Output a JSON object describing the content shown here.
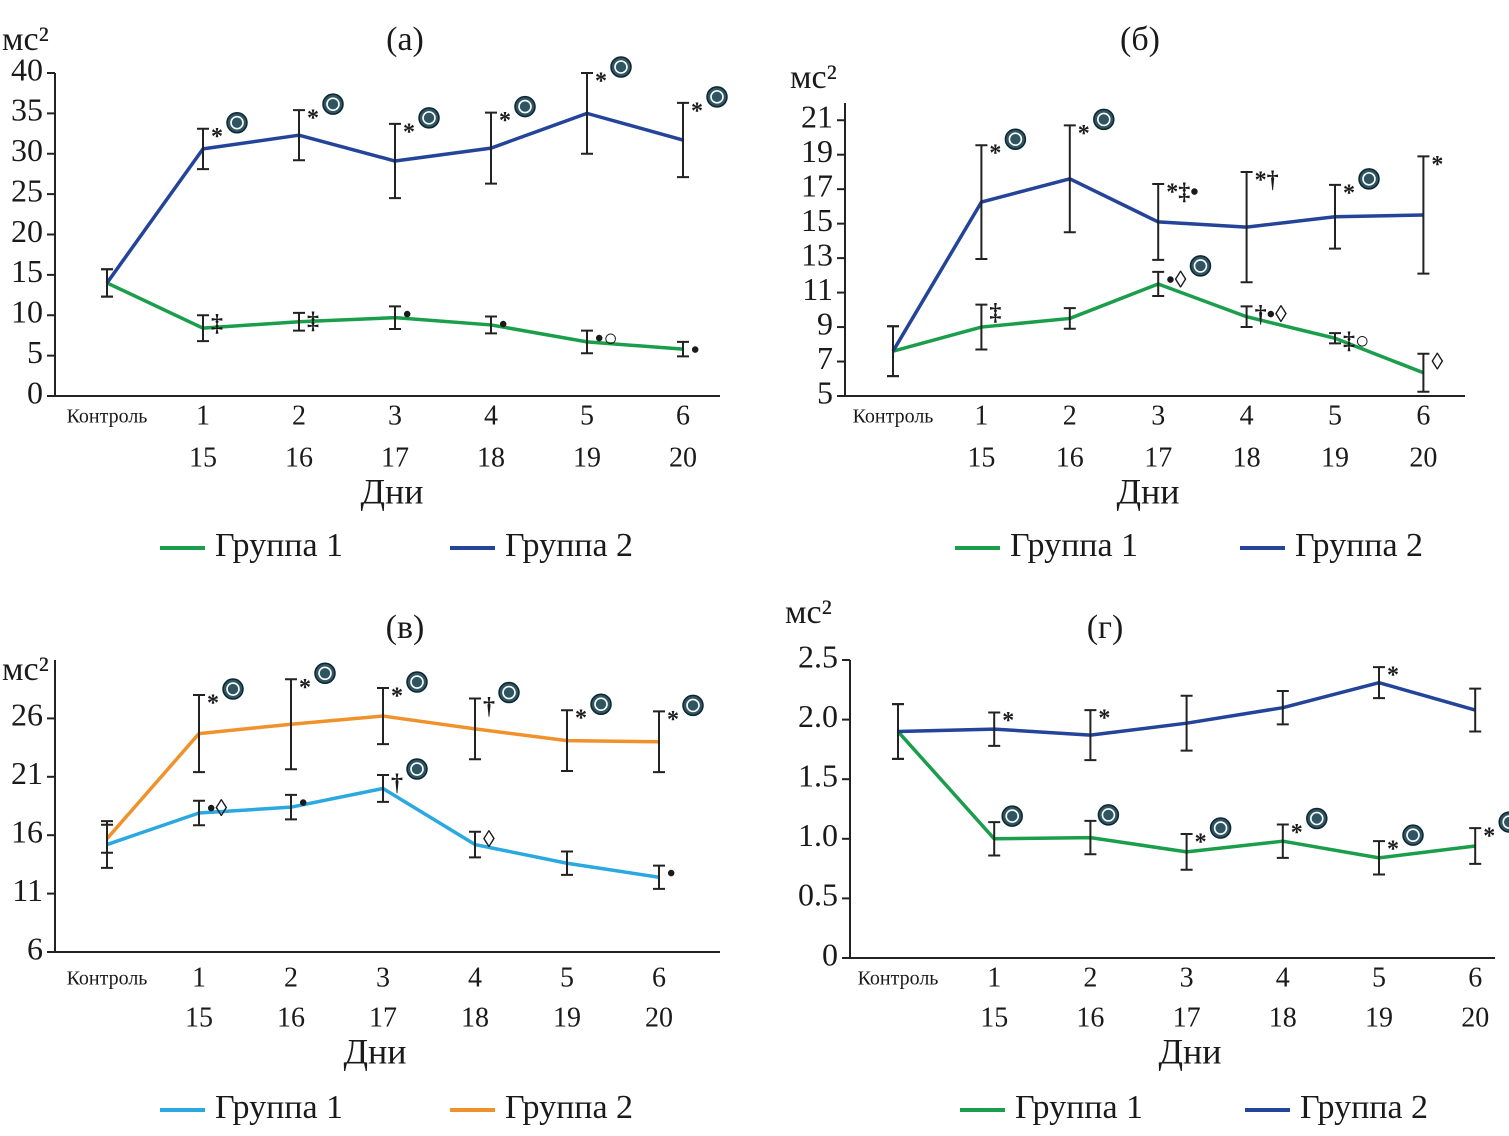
{
  "chart_data": [
    {
      "type": "line",
      "title": "(а)",
      "ylabel": "мс²",
      "xlabel": "Дни",
      "categories": [
        "Контроль",
        "1",
        "2",
        "3",
        "4",
        "5",
        "6"
      ],
      "categories_days": [
        null,
        "15",
        "16",
        "17",
        "18",
        "19",
        "20"
      ],
      "ylim": [
        0,
        40
      ],
      "yticks": [
        0,
        5,
        10,
        15,
        20,
        25,
        30,
        35,
        40
      ],
      "series": [
        {
          "name": "Группа 1",
          "color": "#1b9e4b",
          "values": [
            14,
            8.4,
            9.2,
            9.7,
            8.8,
            6.7,
            5.8
          ],
          "errors": [
            1.7,
            1.6,
            1.1,
            1.4,
            1.05,
            1.4,
            0.9
          ],
          "annotations": [
            null,
            "‡",
            "‡",
            "•",
            "•",
            "•○",
            "•"
          ],
          "sig_icon": [
            false,
            false,
            false,
            false,
            false,
            false,
            false
          ]
        },
        {
          "name": "Группа 2",
          "color": "#24449a",
          "values": [
            14,
            30.6,
            32.3,
            29.1,
            30.7,
            35,
            31.7
          ],
          "errors": [
            1.7,
            2.5,
            3.1,
            4.6,
            4.4,
            5,
            4.6
          ],
          "annotations": [
            null,
            "*",
            "*",
            "*",
            "*",
            "*",
            "*"
          ],
          "sig_icon": [
            false,
            true,
            true,
            true,
            true,
            true,
            true
          ]
        }
      ]
    },
    {
      "type": "line",
      "title": "(б)",
      "ylabel": "мс²",
      "xlabel": "Дни",
      "categories": [
        "Контроль",
        "1",
        "2",
        "3",
        "4",
        "5",
        "6"
      ],
      "categories_days": [
        null,
        "15",
        "16",
        "17",
        "18",
        "19",
        "20"
      ],
      "ylim": [
        5,
        22
      ],
      "yticks": [
        5,
        7,
        9,
        11,
        13,
        15,
        17,
        19,
        21
      ],
      "series": [
        {
          "name": "Группа 1",
          "color": "#1b9e4b",
          "values": [
            7.6,
            9,
            9.5,
            11.5,
            9.6,
            8.35,
            6.35
          ],
          "errors": [
            1.45,
            1.3,
            0.6,
            0.7,
            0.6,
            0.3,
            1.1
          ],
          "annotations": [
            null,
            "‡",
            null,
            "•◊",
            "†•◊",
            "‡○",
            "◊"
          ],
          "sig_icon": [
            false,
            false,
            false,
            true,
            false,
            false,
            false
          ]
        },
        {
          "name": "Группа 2",
          "color": "#24449a",
          "values": [
            7.6,
            16.25,
            17.6,
            15.1,
            14.8,
            15.4,
            15.5
          ],
          "errors": [
            1.45,
            3.3,
            3.1,
            2.2,
            3.2,
            1.85,
            3.4
          ],
          "annotations": [
            null,
            "*",
            "*",
            "*‡•",
            "*†",
            "*",
            "*"
          ],
          "sig_icon": [
            false,
            true,
            true,
            false,
            false,
            true,
            false
          ]
        }
      ]
    },
    {
      "type": "line",
      "title": "(в)",
      "ylabel": "мс²",
      "xlabel": "Дни",
      "categories": [
        "Контроль",
        "1",
        "2",
        "3",
        "4",
        "5",
        "6"
      ],
      "categories_days": [
        null,
        "15",
        "16",
        "17",
        "18",
        "19",
        "20"
      ],
      "ylim": [
        6,
        31
      ],
      "yticks": [
        6,
        11,
        16,
        21,
        26
      ],
      "series": [
        {
          "name": "Группа 1",
          "color": "#2aa8e0",
          "values": [
            15.2,
            17.9,
            18.4,
            20,
            15.2,
            13.6,
            12.4
          ],
          "errors": [
            2,
            1.05,
            1.05,
            1.15,
            1.1,
            1,
            1
          ],
          "annotations": [
            null,
            "•◊",
            "•",
            "†",
            "◊",
            null,
            "•"
          ],
          "sig_icon": [
            false,
            false,
            false,
            true,
            false,
            false,
            false
          ]
        },
        {
          "name": "Группа 2",
          "color": "#f0922b",
          "values": [
            15.7,
            24.7,
            25.5,
            26.2,
            25.1,
            24.1,
            24
          ],
          "errors": [
            1.2,
            3.3,
            3.85,
            2.4,
            2.6,
            2.6,
            2.6
          ],
          "annotations": [
            null,
            "*",
            "*",
            "*",
            "†",
            "*",
            "*"
          ],
          "sig_icon": [
            false,
            true,
            true,
            true,
            true,
            true,
            true
          ]
        }
      ]
    },
    {
      "type": "line",
      "title": "(г)",
      "ylabel": "мс²",
      "xlabel": "Дни",
      "categories": [
        "Контроль",
        "1",
        "2",
        "3",
        "4",
        "5",
        "6"
      ],
      "categories_days": [
        null,
        "15",
        "16",
        "17",
        "18",
        "19",
        "20"
      ],
      "ylim": [
        0,
        2.5
      ],
      "yticks": [
        0,
        0.5,
        {
          "value": 1,
          "label": "1.0"
        },
        1.5,
        {
          "value": 2,
          "label": "2.0"
        },
        2.5
      ],
      "series": [
        {
          "name": "Группа 1",
          "color": "#1b9e4b",
          "values": [
            1.9,
            1.0,
            1.01,
            0.89,
            0.98,
            0.84,
            0.94
          ],
          "errors": [
            0.23,
            0.14,
            0.14,
            0.15,
            0.14,
            0.14,
            0.15
          ],
          "annotations": [
            null,
            null,
            null,
            "*",
            "*",
            "*",
            "*"
          ],
          "sig_icon": [
            false,
            true,
            true,
            true,
            true,
            true,
            true
          ]
        },
        {
          "name": "Группа 2",
          "color": "#24449a",
          "values": [
            1.9,
            1.92,
            1.87,
            1.97,
            2.1,
            2.31,
            2.08
          ],
          "errors": [
            0.23,
            0.14,
            0.21,
            0.23,
            0.14,
            0.13,
            0.18
          ],
          "annotations": [
            null,
            "*",
            "*",
            null,
            null,
            "*",
            null
          ],
          "sig_icon": [
            false,
            false,
            false,
            false,
            false,
            false,
            false
          ]
        }
      ]
    }
  ]
}
